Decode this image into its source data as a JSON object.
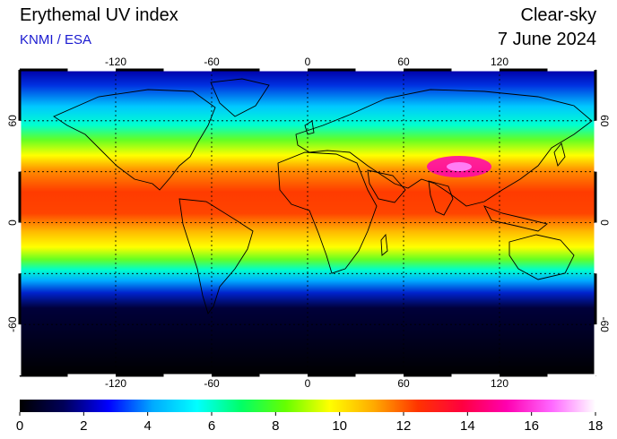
{
  "header": {
    "title": "Erythemal UV index",
    "credit": "KNMI / ESA",
    "mode": "Clear-sky",
    "date": "7 June 2024"
  },
  "map": {
    "projection": "equirectangular",
    "lon_range": [
      -180,
      180
    ],
    "lat_range": [
      -90,
      90
    ],
    "grid_lines": true,
    "top_lon_ticks": [
      "-120",
      "-60",
      "0",
      "60",
      "120"
    ],
    "bottom_lon_ticks": [
      "-120",
      "-60",
      "0",
      "60",
      "120"
    ],
    "left_lat_ticks": [
      "60",
      "0",
      "-60"
    ],
    "right_lat_ticks": [
      "60",
      "0",
      "-60"
    ],
    "background": "#000000",
    "coastline_color": "#000000"
  },
  "colorbar": {
    "min": 0,
    "max": 18,
    "tick_labels": [
      "0",
      "2",
      "4",
      "6",
      "8",
      "10",
      "12",
      "14",
      "16",
      "18"
    ],
    "colors": [
      "#000000",
      "#00005a",
      "#0000ff",
      "#00aaff",
      "#00ffff",
      "#00ff66",
      "#66ff00",
      "#ffff00",
      "#ffaa00",
      "#ff3300",
      "#ff0040",
      "#ff00b0",
      "#ff66ff",
      "#ffffff"
    ]
  }
}
